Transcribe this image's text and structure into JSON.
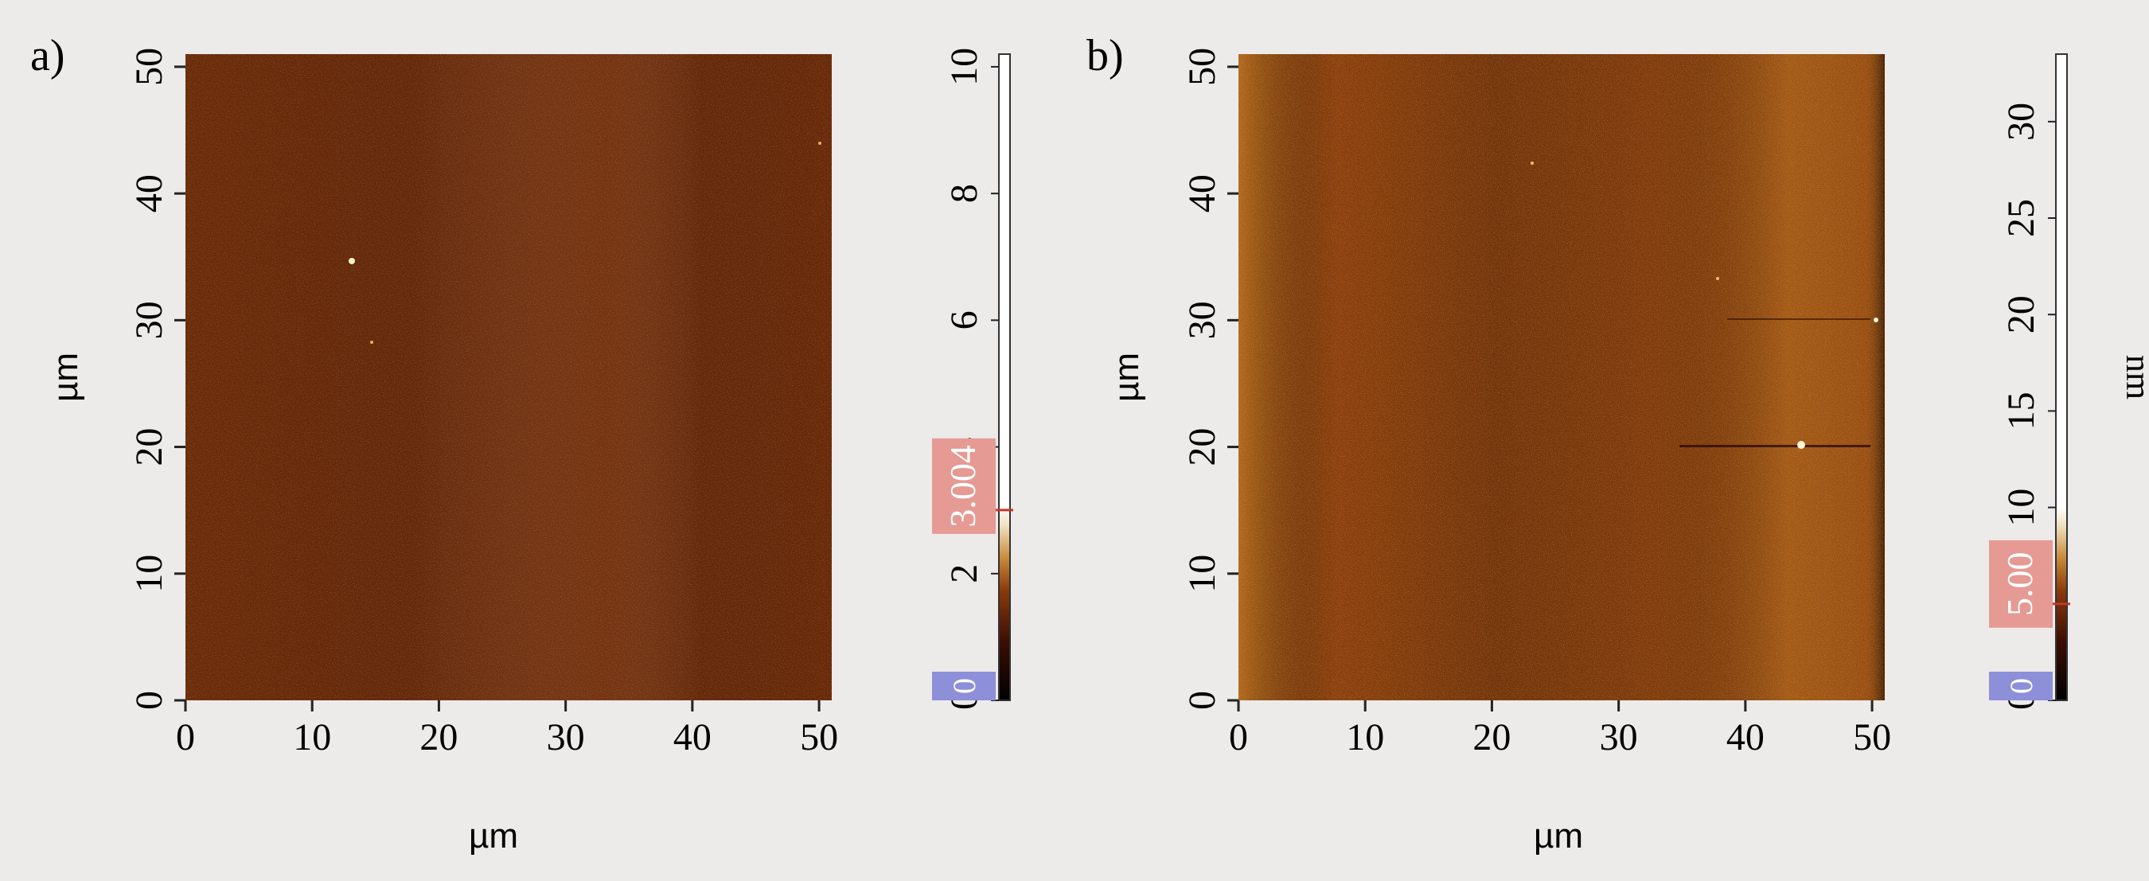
{
  "chart_data": [
    {
      "type": "heatmap",
      "panel_label": "a)",
      "xlabel": "µm",
      "ylabel": "µm",
      "xlim": [
        0,
        51
      ],
      "ylim": [
        0,
        51
      ],
      "xticks": [
        0,
        10,
        20,
        30,
        40,
        50
      ],
      "yticks": [
        0,
        10,
        20,
        30,
        40,
        50
      ],
      "colorbar": {
        "ticks": [
          0,
          2,
          4,
          6,
          8,
          10
        ],
        "range": [
          0,
          10.2
        ],
        "unit_label": "",
        "min_marker": "0",
        "max_marker": "3.004",
        "max_marker_value": 3.004
      },
      "image_color": "#6e2c0b"
    },
    {
      "type": "heatmap",
      "panel_label": "b)",
      "xlabel": "µm",
      "ylabel": "µm",
      "xlim": [
        0,
        51
      ],
      "ylim": [
        0,
        51
      ],
      "xticks": [
        0,
        10,
        20,
        30,
        40,
        50
      ],
      "yticks": [
        0,
        10,
        20,
        30,
        40,
        50
      ],
      "colorbar": {
        "ticks": [
          0,
          5,
          10,
          15,
          20,
          25,
          30
        ],
        "range": [
          0,
          33.5
        ],
        "unit_label": "nm",
        "min_marker": "0",
        "max_marker": "5.00",
        "max_marker_value": 5.0
      },
      "image_color": "#8a3f0d"
    }
  ]
}
